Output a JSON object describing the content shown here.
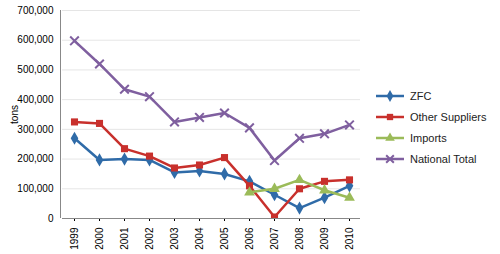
{
  "chart_data": {
    "type": "line",
    "y_label": "tons",
    "categories": [
      "1999",
      "2000",
      "2001",
      "2002",
      "2003",
      "2004",
      "2005",
      "2006",
      "2007",
      "2008",
      "2009",
      "2010"
    ],
    "series": [
      {
        "name": "ZFC",
        "color": "#2f6ba8",
        "marker": "diamond",
        "values": [
          270000,
          197000,
          200000,
          197000,
          155000,
          160000,
          150000,
          125000,
          80000,
          35000,
          70000,
          110000
        ]
      },
      {
        "name": "Other Suppliers",
        "color": "#c8302c",
        "marker": "square",
        "values": [
          325000,
          320000,
          235000,
          210000,
          170000,
          180000,
          205000,
          110000,
          5000,
          100000,
          125000,
          130000
        ]
      },
      {
        "name": "Imports",
        "color": "#9bbb59",
        "marker": "triangle",
        "values": [
          null,
          null,
          null,
          null,
          null,
          null,
          null,
          88000,
          100000,
          130000,
          95000,
          70000
        ]
      },
      {
        "name": "National Total",
        "color": "#7f5f9f",
        "marker": "x",
        "values": [
          598000,
          520000,
          435000,
          410000,
          325000,
          340000,
          355000,
          305000,
          195000,
          270000,
          285000,
          315000
        ]
      }
    ],
    "ylim": [
      0,
      700000
    ],
    "yticks": [
      0,
      100000,
      200000,
      300000,
      400000,
      500000,
      600000,
      700000
    ],
    "grid": true,
    "legend": "right"
  }
}
